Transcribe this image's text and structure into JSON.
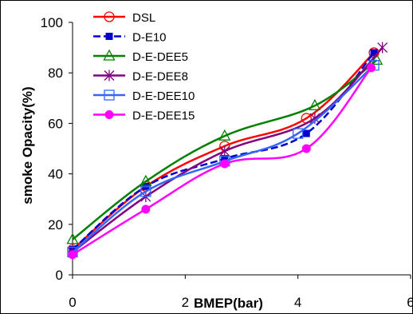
{
  "chart_data": {
    "type": "line",
    "title": "",
    "xlabel": "BMEP(bar)",
    "ylabel": "smoke Opacity(%)",
    "xlim": [
      0,
      6
    ],
    "ylim": [
      0,
      100
    ],
    "xticks": [
      "0",
      "2",
      "4",
      "6"
    ],
    "yticks": [
      "0",
      "20",
      "40",
      "60",
      "80",
      "100"
    ],
    "grid": false,
    "legend_position": "top-left",
    "series": [
      {
        "name": "DSL",
        "color": "#ff0000",
        "marker": "circle-open",
        "dash": "solid",
        "x": [
          0,
          1.3,
          2.7,
          4.15,
          5.35
        ],
        "y": [
          10,
          35,
          51,
          62,
          88
        ]
      },
      {
        "name": "D-E10",
        "color": "#0000cc",
        "marker": "square-filled",
        "dash": "dashed",
        "x": [
          0,
          1.3,
          2.7,
          4.15,
          5.35
        ],
        "y": [
          10,
          35,
          46,
          56,
          88
        ]
      },
      {
        "name": "D-E-DEE5",
        "color": "#008000",
        "marker": "triangle-open",
        "dash": "solid",
        "x": [
          0,
          1.3,
          2.7,
          4.3,
          5.4
        ],
        "y": [
          14,
          37,
          55,
          67,
          85
        ]
      },
      {
        "name": "D-E-DEE8",
        "color": "#800080",
        "marker": "star",
        "dash": "solid",
        "x": [
          0,
          1.3,
          2.7,
          4.3,
          5.5
        ],
        "y": [
          9,
          31,
          49,
          62,
          90
        ]
      },
      {
        "name": "D-E-DEE10",
        "color": "#3366ff",
        "marker": "square-open",
        "dash": "solid",
        "x": [
          0,
          1.3,
          2.7,
          4.0,
          5.35
        ],
        "y": [
          9,
          33,
          45,
          56,
          83
        ]
      },
      {
        "name": "D-E-DEE15",
        "color": "#ff00ff",
        "marker": "circle-filled",
        "dash": "solid",
        "x": [
          0,
          1.3,
          2.7,
          4.15,
          5.3
        ],
        "y": [
          8,
          26,
          44,
          50,
          82
        ]
      }
    ]
  }
}
